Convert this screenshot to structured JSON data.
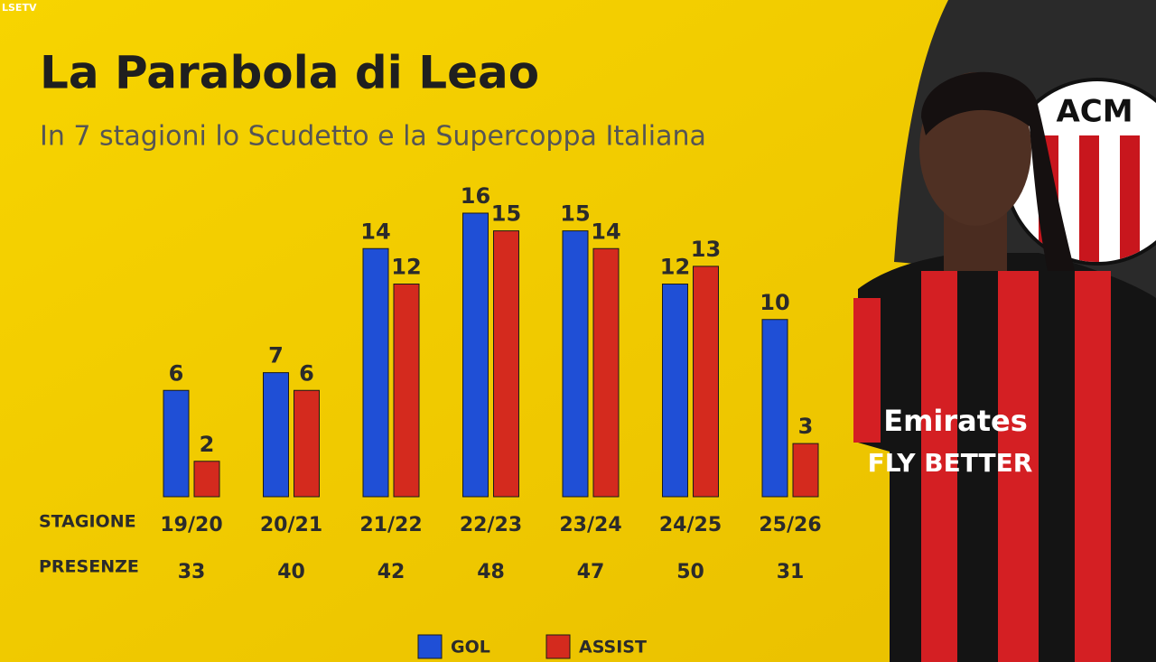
{
  "chart_data": {
    "type": "bar",
    "title": "La Parabola di Leao",
    "subtitle": "In 7 stagioni lo Scudetto e la Supercoppa Italiana",
    "category_label": "STAGIONE",
    "categories": [
      "19/20",
      "20/21",
      "21/22",
      "22/23",
      "23/24",
      "24/25",
      "25/26"
    ],
    "series": [
      {
        "name": "GOL",
        "color": "#1f4fd6",
        "values": [
          6,
          7,
          14,
          16,
          15,
          12,
          10
        ]
      },
      {
        "name": "ASSIST",
        "color": "#d42a1e",
        "values": [
          2,
          6,
          12,
          15,
          14,
          13,
          3
        ]
      }
    ],
    "appearances_label": "PRESENZE",
    "appearances": [
      33,
      40,
      42,
      48,
      47,
      50,
      31
    ]
  },
  "watermark": "LSETV",
  "image_text": {
    "badge": "ACM",
    "sponsor": "Emirates",
    "slogan": "FLY BETTER"
  }
}
